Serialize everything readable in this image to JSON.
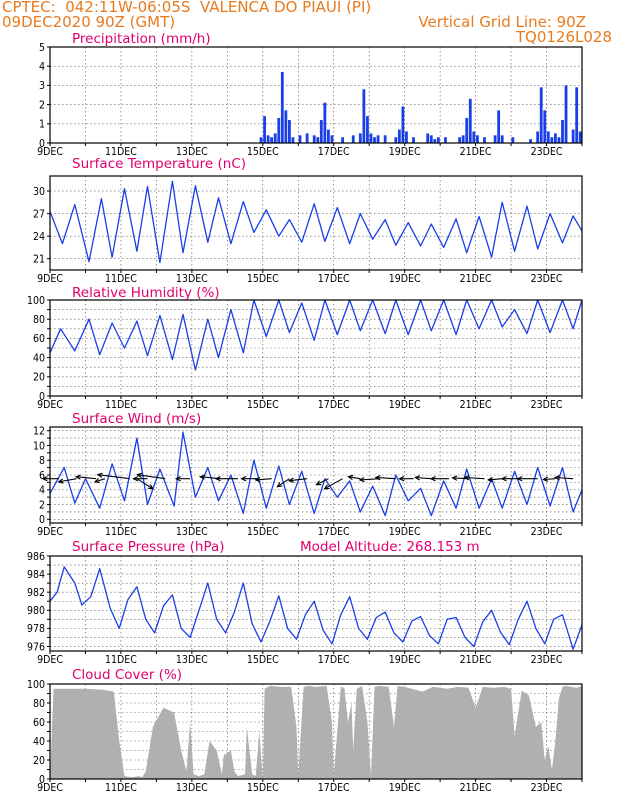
{
  "header": {
    "line1_left": "CPTEC:  042:11W-06:05S  VALENCA DO PIAUI (PI)",
    "line2_left": "09DEC2020 90Z (GMT)",
    "line2_right": "Vertical Grid Line: 90Z",
    "line3_right": "TQ0126L028",
    "model_altitude": "Model Altitude: 268.153 m",
    "colors": {
      "orange": "#e87a1e",
      "magenta": "#e0006f",
      "blue": "#1a3fe6",
      "gray": "#b0b0b0"
    }
  },
  "x_tick_labels": [
    "9DEC",
    "11DEC",
    "13DEC",
    "15DEC",
    "17DEC",
    "19DEC",
    "21DEC",
    "23DEC"
  ],
  "chart_data": [
    {
      "id": "precipitation",
      "type": "bar",
      "title": "Precipitation (mm/h)",
      "x_range_days": [
        9,
        24
      ],
      "ylim": [
        0,
        5
      ],
      "yticks": [
        0,
        1,
        2,
        3,
        4,
        5
      ],
      "grid": "dashed-vertical-and-horizontal",
      "x": [
        14.95,
        15.05,
        15.15,
        15.25,
        15.35,
        15.45,
        15.55,
        15.65,
        15.75,
        15.85,
        16.05,
        16.25,
        16.45,
        16.55,
        16.65,
        16.75,
        16.85,
        16.95,
        17.25,
        17.55,
        17.75,
        17.85,
        17.95,
        18.05,
        18.15,
        18.25,
        18.45,
        18.75,
        18.85,
        18.95,
        19.05,
        19.25,
        19.65,
        19.75,
        19.85,
        19.95,
        20.15,
        20.55,
        20.65,
        20.75,
        20.85,
        20.95,
        21.05,
        21.25,
        21.55,
        21.65,
        21.75,
        22.05,
        22.55,
        22.75,
        22.85,
        22.95,
        23.05,
        23.15,
        23.25,
        23.35,
        23.45,
        23.55,
        23.75,
        23.85,
        23.95
      ],
      "values": [
        0.3,
        1.4,
        0.4,
        0.3,
        0.5,
        1.3,
        3.7,
        1.7,
        1.2,
        0.3,
        0.4,
        0.5,
        0.4,
        0.3,
        1.2,
        2.1,
        0.7,
        0.4,
        0.3,
        0.4,
        0.5,
        2.8,
        1.4,
        0.5,
        0.3,
        0.4,
        0.4,
        0.3,
        0.7,
        1.9,
        0.6,
        0.3,
        0.5,
        0.4,
        0.2,
        0.3,
        0.3,
        0.3,
        0.4,
        1.3,
        2.3,
        0.6,
        0.4,
        0.3,
        0.4,
        1.7,
        0.4,
        0.3,
        0.2,
        0.6,
        2.9,
        1.7,
        0.6,
        0.3,
        0.5,
        0.3,
        1.2,
        3.0,
        0.7,
        2.9,
        0.6
      ],
      "color": "#1a3fe6"
    },
    {
      "id": "temperature",
      "type": "line",
      "title": "Surface Temperature (nC)",
      "x_range_days": [
        9,
        24
      ],
      "ylim": [
        19.5,
        32.0
      ],
      "yticks": [
        21,
        24,
        27,
        30
      ],
      "x": [
        9.0,
        9.35,
        9.7,
        10.1,
        10.45,
        10.75,
        11.1,
        11.45,
        11.75,
        12.1,
        12.45,
        12.75,
        13.1,
        13.45,
        13.75,
        14.1,
        14.45,
        14.75,
        15.1,
        15.45,
        15.75,
        16.1,
        16.45,
        16.75,
        17.1,
        17.45,
        17.75,
        18.1,
        18.45,
        18.75,
        19.1,
        19.45,
        19.75,
        20.1,
        20.45,
        20.75,
        21.1,
        21.45,
        21.75,
        22.1,
        22.45,
        22.75,
        23.1,
        23.45,
        23.75,
        24.0
      ],
      "values": [
        27.3,
        23.0,
        28.2,
        20.6,
        29.0,
        21.2,
        30.3,
        22.0,
        30.6,
        20.5,
        31.3,
        21.8,
        30.7,
        23.2,
        29.1,
        23.0,
        28.6,
        24.5,
        27.5,
        24.0,
        26.2,
        23.2,
        28.3,
        23.3,
        27.8,
        23.0,
        27.0,
        23.6,
        26.2,
        22.8,
        25.8,
        22.7,
        25.6,
        22.5,
        26.3,
        21.8,
        26.6,
        21.2,
        28.5,
        22.0,
        28.0,
        22.3,
        27.0,
        23.1,
        26.7,
        24.7
      ],
      "color": "#1a3fe6"
    },
    {
      "id": "humidity",
      "type": "line",
      "title": "Relative Humidity (%)",
      "x_range_days": [
        9,
        24
      ],
      "ylim": [
        0,
        100
      ],
      "yticks": [
        0,
        10,
        20,
        30,
        40,
        50,
        60,
        70,
        80,
        90,
        100
      ],
      "ytick_labels_shown": [
        0,
        20,
        40,
        60,
        80,
        100
      ],
      "x": [
        9.0,
        9.3,
        9.7,
        10.1,
        10.4,
        10.75,
        11.1,
        11.45,
        11.75,
        12.1,
        12.45,
        12.75,
        13.1,
        13.45,
        13.75,
        14.1,
        14.45,
        14.75,
        15.1,
        15.45,
        15.75,
        16.1,
        16.45,
        16.75,
        17.1,
        17.45,
        17.75,
        18.1,
        18.45,
        18.75,
        19.1,
        19.45,
        19.75,
        20.1,
        20.45,
        20.75,
        21.1,
        21.45,
        21.75,
        22.1,
        22.45,
        22.75,
        23.1,
        23.45,
        23.75,
        24.0
      ],
      "values": [
        45,
        70,
        47,
        80,
        43,
        76,
        50,
        78,
        42,
        84,
        38,
        85,
        27,
        80,
        40,
        90,
        45,
        100,
        62,
        100,
        66,
        97,
        58,
        100,
        64,
        100,
        68,
        100,
        65,
        100,
        64,
        100,
        68,
        100,
        64,
        100,
        70,
        100,
        72,
        90,
        65,
        100,
        66,
        100,
        70,
        100
      ],
      "color": "#1a3fe6"
    },
    {
      "id": "wind",
      "type": "line",
      "title": "Surface Wind (m/s)",
      "x_range_days": [
        9,
        24
      ],
      "ylim": [
        -0.5,
        12.5
      ],
      "yticks": [
        0,
        1,
        2,
        3,
        4,
        5,
        6,
        7,
        8,
        9,
        10,
        11,
        12
      ],
      "ytick_labels_shown": [
        0,
        2,
        4,
        6,
        8,
        10,
        12
      ],
      "x": [
        9.0,
        9.4,
        9.7,
        10.0,
        10.4,
        10.75,
        11.1,
        11.45,
        11.75,
        12.1,
        12.5,
        12.75,
        13.1,
        13.45,
        13.75,
        14.1,
        14.45,
        14.75,
        15.1,
        15.45,
        15.75,
        16.1,
        16.45,
        16.75,
        17.1,
        17.45,
        17.75,
        18.1,
        18.45,
        18.75,
        19.1,
        19.45,
        19.75,
        20.1,
        20.45,
        20.75,
        21.1,
        21.45,
        21.75,
        22.1,
        22.45,
        22.75,
        23.1,
        23.45,
        23.75,
        24.0
      ],
      "values": [
        3.5,
        7.0,
        2.2,
        5.5,
        1.5,
        7.5,
        2.5,
        11.0,
        2.0,
        6.8,
        1.8,
        11.8,
        3.0,
        7.0,
        2.5,
        6.0,
        0.8,
        8.0,
        1.5,
        7.2,
        2.0,
        6.5,
        0.8,
        5.5,
        3.0,
        5.2,
        1.0,
        4.5,
        0.5,
        6.0,
        2.5,
        4.2,
        0.5,
        5.2,
        1.5,
        6.8,
        1.5,
        5.5,
        1.5,
        6.5,
        2.0,
        7.0,
        1.8,
        7.0,
        1.0,
        4.0
      ],
      "color": "#1a3fe6",
      "vector_x": [
        9.25,
        9.75,
        10.3,
        10.55,
        11.25,
        11.45,
        11.75,
        12.25,
        12.95,
        13.8,
        14.3,
        14.85,
        15.25,
        15.75,
        16.25,
        16.85,
        17.25,
        17.75,
        18.3,
        18.75,
        19.25,
        19.75,
        20.25,
        20.8,
        21.25,
        21.75,
        22.25,
        22.75,
        23.25,
        23.75
      ],
      "vector_u": [
        -4.0,
        -4.5,
        -5.0,
        -2.5,
        -8.0,
        4.0,
        -3.5,
        -7.0,
        -3.5,
        -5.0,
        -5.5,
        -4.0,
        -4.0,
        -3.0,
        -4.5,
        -3.0,
        -4.5,
        -3.0,
        -5.0,
        -5.0,
        -3.5,
        -4.0,
        -4.5,
        -4.0,
        -5.0,
        -3.5,
        -4.5,
        -5.0,
        -3.0,
        -4.5
      ],
      "vector_v": [
        0.0,
        -0.8,
        0.5,
        -0.8,
        1.0,
        -2.5,
        0.0,
        1.0,
        0.0,
        0.5,
        0.0,
        0.0,
        -0.3,
        -2.0,
        -0.5,
        -1.5,
        -2.5,
        0.5,
        -0.3,
        0.3,
        0.0,
        0.3,
        0.0,
        0.2,
        0.3,
        -0.3,
        0.0,
        0.0,
        -0.2,
        0.3
      ],
      "vector_color": "#000000"
    },
    {
      "id": "pressure",
      "type": "line",
      "title": "Surface Pressure (hPa)",
      "x_range_days": [
        9,
        24
      ],
      "ylim": [
        975.5,
        986.0
      ],
      "yticks": [
        976,
        977,
        978,
        979,
        980,
        981,
        982,
        983,
        984,
        985,
        986
      ],
      "ytick_labels_shown": [
        976,
        978,
        980,
        982,
        984,
        986
      ],
      "x": [
        9.0,
        9.2,
        9.4,
        9.7,
        9.9,
        10.15,
        10.4,
        10.7,
        10.95,
        11.2,
        11.45,
        11.7,
        11.95,
        12.2,
        12.45,
        12.7,
        12.95,
        13.2,
        13.45,
        13.7,
        13.95,
        14.2,
        14.45,
        14.7,
        14.95,
        15.2,
        15.45,
        15.7,
        15.95,
        16.2,
        16.45,
        16.7,
        16.95,
        17.2,
        17.45,
        17.7,
        17.95,
        18.2,
        18.45,
        18.7,
        18.95,
        19.2,
        19.45,
        19.7,
        19.95,
        20.2,
        20.45,
        20.7,
        20.95,
        21.2,
        21.45,
        21.7,
        21.95,
        22.2,
        22.45,
        22.7,
        22.95,
        23.2,
        23.45,
        23.75,
        24.0
      ],
      "values": [
        981.0,
        982.0,
        984.8,
        983.0,
        980.6,
        981.5,
        984.6,
        980.2,
        978.0,
        981.2,
        982.6,
        979.0,
        977.5,
        980.5,
        981.7,
        978.0,
        977.0,
        980.0,
        983.0,
        979.0,
        977.5,
        979.8,
        983.0,
        978.5,
        976.5,
        978.8,
        981.6,
        978.0,
        976.8,
        979.5,
        981.0,
        977.8,
        976.3,
        979.5,
        981.5,
        978.0,
        976.8,
        979.2,
        979.8,
        977.5,
        976.5,
        978.8,
        979.3,
        977.2,
        976.3,
        979.0,
        979.2,
        977.0,
        976.0,
        978.7,
        980.0,
        977.6,
        976.2,
        979.0,
        981.0,
        978.0,
        976.3,
        979.0,
        979.5,
        975.7,
        978.4
      ],
      "color": "#1a3fe6"
    },
    {
      "id": "cloud",
      "type": "area",
      "title": "Cloud Cover (%)",
      "x_range_days": [
        9,
        24
      ],
      "ylim": [
        0,
        100
      ],
      "yticks": [
        0,
        10,
        20,
        30,
        40,
        50,
        60,
        70,
        80,
        90,
        100
      ],
      "ytick_labels_shown": [
        0,
        20,
        40,
        60,
        80,
        100
      ],
      "x": [
        9.0,
        9.1,
        9.5,
        10.0,
        10.5,
        10.8,
        10.95,
        11.1,
        11.3,
        11.5,
        11.6,
        11.7,
        11.9,
        12.2,
        12.5,
        12.7,
        12.85,
        12.95,
        13.05,
        13.2,
        13.35,
        13.5,
        13.7,
        13.85,
        13.9,
        14.1,
        14.2,
        14.3,
        14.5,
        14.55,
        14.7,
        14.8,
        14.9,
        15.0,
        15.05,
        15.2,
        15.5,
        15.8,
        15.95,
        16.0,
        16.05,
        16.15,
        16.3,
        16.5,
        16.8,
        16.95,
        17.0,
        17.2,
        17.3,
        17.4,
        17.5,
        17.55,
        17.65,
        17.8,
        17.95,
        18.05,
        18.15,
        18.3,
        18.55,
        18.7,
        18.8,
        19.0,
        19.2,
        19.5,
        19.8,
        20.0,
        20.2,
        20.5,
        20.8,
        21.0,
        21.2,
        21.5,
        21.8,
        22.0,
        22.1,
        22.3,
        22.5,
        22.7,
        22.85,
        22.95,
        23.05,
        23.15,
        23.25,
        23.35,
        23.45,
        23.55,
        23.7,
        23.85,
        24.0
      ],
      "values": [
        0,
        95,
        95,
        95,
        94,
        92,
        40,
        3,
        2,
        3,
        2,
        8,
        55,
        75,
        70,
        30,
        8,
        60,
        5,
        3,
        5,
        40,
        30,
        5,
        25,
        30,
        8,
        3,
        5,
        55,
        5,
        3,
        50,
        0,
        95,
        98,
        97,
        97,
        55,
        3,
        35,
        97,
        98,
        97,
        98,
        60,
        3,
        97,
        96,
        60,
        80,
        30,
        95,
        98,
        60,
        3,
        97,
        98,
        97,
        55,
        98,
        97,
        95,
        92,
        97,
        96,
        95,
        97,
        96,
        75,
        97,
        96,
        97,
        95,
        45,
        93,
        88,
        55,
        60,
        20,
        35,
        10,
        40,
        85,
        97,
        98,
        97,
        96,
        98
      ],
      "color": "#b0b0b0"
    }
  ]
}
